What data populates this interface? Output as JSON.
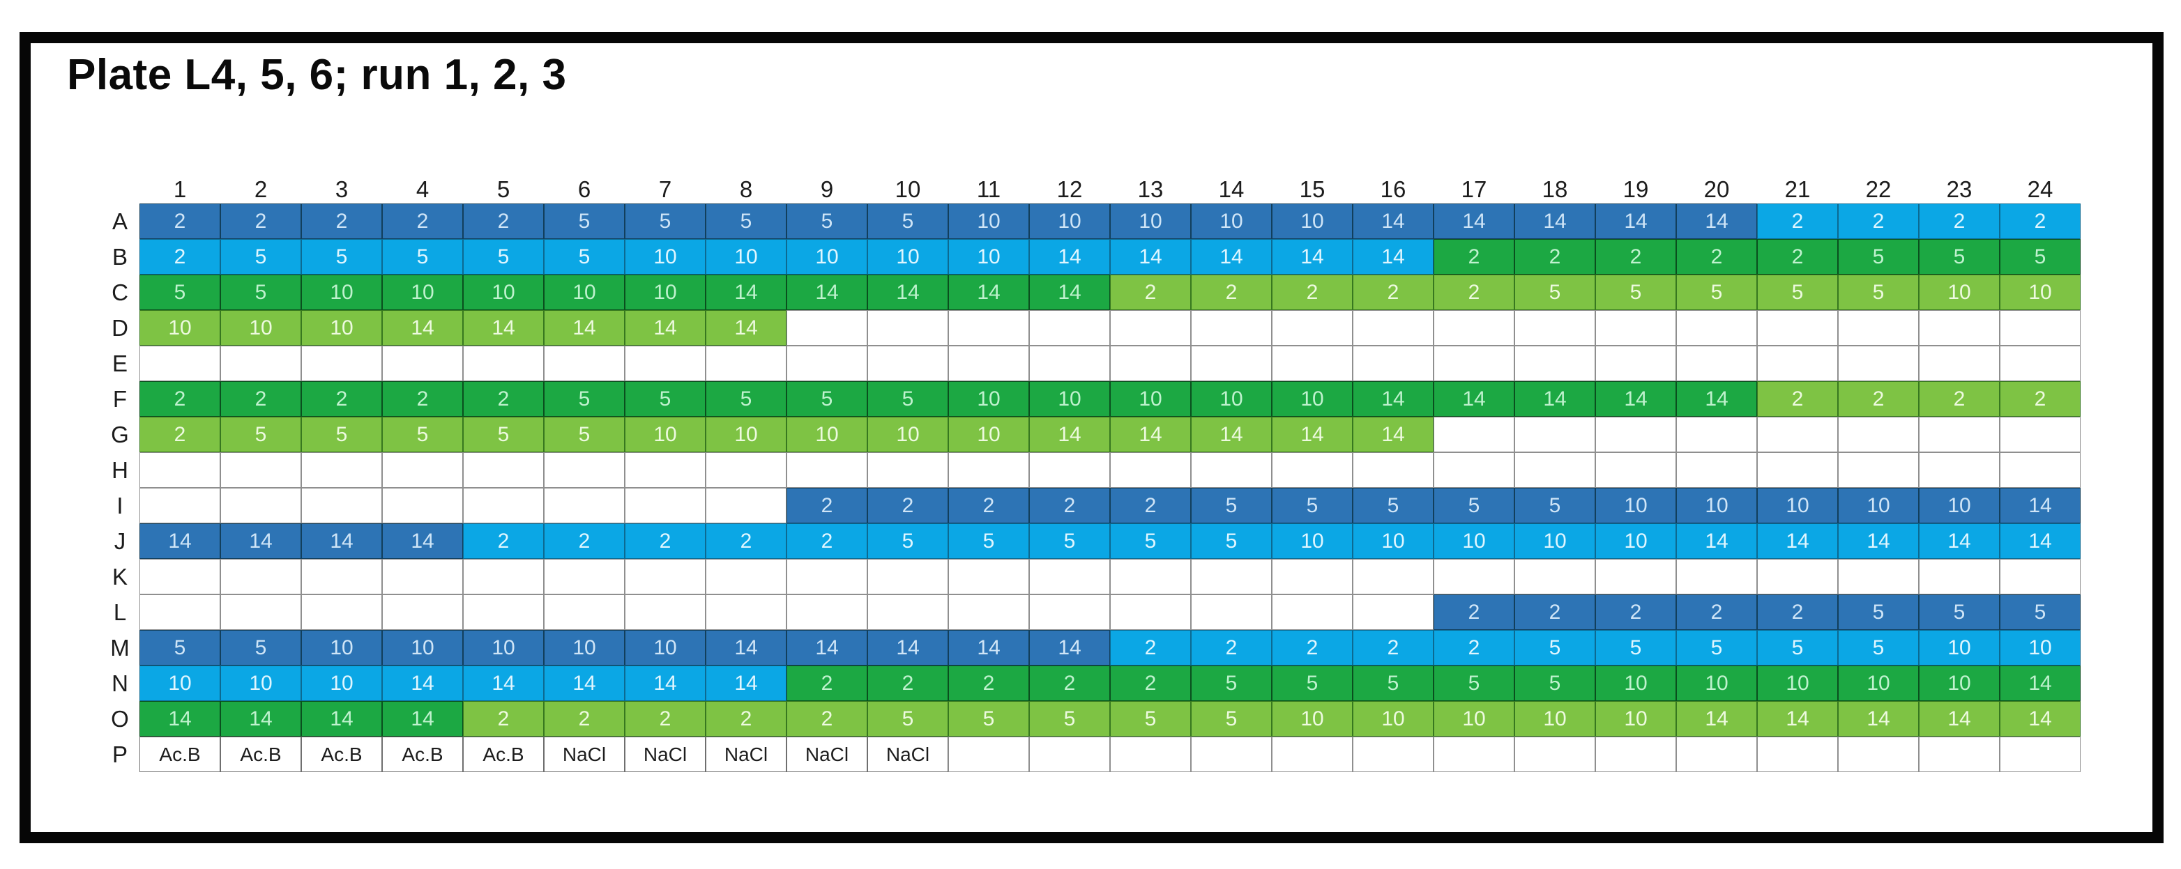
{
  "title": "Plate L4, 5, 6; run 1, 2, 3",
  "plate": {
    "column_headers": [
      "1",
      "2",
      "3",
      "4",
      "5",
      "6",
      "7",
      "8",
      "9",
      "10",
      "11",
      "12",
      "13",
      "14",
      "15",
      "16",
      "17",
      "18",
      "19",
      "20",
      "21",
      "22",
      "23",
      "24"
    ],
    "cell_color_legend": {
      "db": {
        "name": "dark-blue",
        "hex": "#2D74B5"
      },
      "lb": {
        "name": "light-blue",
        "hex": "#0BA7E5"
      },
      "dg": {
        "name": "dark-green",
        "hex": "#1CA843"
      },
      "lg": {
        "name": "light-green",
        "hex": "#7EC344"
      },
      "wt": {
        "name": "white-text-cell",
        "hex": "#FFFFFF"
      }
    },
    "rows": [
      {
        "label": "A",
        "cells": [
          "db:2",
          "db:2",
          "db:2",
          "db:2",
          "db:2",
          "db:5",
          "db:5",
          "db:5",
          "db:5",
          "db:5",
          "db:10",
          "db:10",
          "db:10",
          "db:10",
          "db:10",
          "db:14",
          "db:14",
          "db:14",
          "db:14",
          "db:14",
          "lb:2",
          "lb:2",
          "lb:2",
          "lb:2"
        ]
      },
      {
        "label": "B",
        "cells": [
          "lb:2",
          "lb:5",
          "lb:5",
          "lb:5",
          "lb:5",
          "lb:5",
          "lb:10",
          "lb:10",
          "lb:10",
          "lb:10",
          "lb:10",
          "lb:14",
          "lb:14",
          "lb:14",
          "lb:14",
          "lb:14",
          "dg:2",
          "dg:2",
          "dg:2",
          "dg:2",
          "dg:2",
          "dg:5",
          "dg:5",
          "dg:5"
        ]
      },
      {
        "label": "C",
        "cells": [
          "dg:5",
          "dg:5",
          "dg:10",
          "dg:10",
          "dg:10",
          "dg:10",
          "dg:10",
          "dg:14",
          "dg:14",
          "dg:14",
          "dg:14",
          "dg:14",
          "lg:2",
          "lg:2",
          "lg:2",
          "lg:2",
          "lg:2",
          "lg:5",
          "lg:5",
          "lg:5",
          "lg:5",
          "lg:5",
          "lg:10",
          "lg:10"
        ]
      },
      {
        "label": "D",
        "cells": [
          "lg:10",
          "lg:10",
          "lg:10",
          "lg:14",
          "lg:14",
          "lg:14",
          "lg:14",
          "lg:14",
          "",
          "",
          "",
          "",
          "",
          "",
          "",
          "",
          "",
          "",
          "",
          "",
          "",
          "",
          "",
          ""
        ]
      },
      {
        "label": "E",
        "cells": [
          "",
          "",
          "",
          "",
          "",
          "",
          "",
          "",
          "",
          "",
          "",
          "",
          "",
          "",
          "",
          "",
          "",
          "",
          "",
          "",
          "",
          "",
          "",
          ""
        ]
      },
      {
        "label": "F",
        "cells": [
          "dg:2",
          "dg:2",
          "dg:2",
          "dg:2",
          "dg:2",
          "dg:5",
          "dg:5",
          "dg:5",
          "dg:5",
          "dg:5",
          "dg:10",
          "dg:10",
          "dg:10",
          "dg:10",
          "dg:10",
          "dg:14",
          "dg:14",
          "dg:14",
          "dg:14",
          "dg:14",
          "lg:2",
          "lg:2",
          "lg:2",
          "lg:2"
        ]
      },
      {
        "label": "G",
        "cells": [
          "lg:2",
          "lg:5",
          "lg:5",
          "lg:5",
          "lg:5",
          "lg:5",
          "lg:10",
          "lg:10",
          "lg:10",
          "lg:10",
          "lg:10",
          "lg:14",
          "lg:14",
          "lg:14",
          "lg:14",
          "lg:14",
          "",
          "",
          "",
          "",
          "",
          "",
          "",
          ""
        ]
      },
      {
        "label": "H",
        "cells": [
          "",
          "",
          "",
          "",
          "",
          "",
          "",
          "",
          "",
          "",
          "",
          "",
          "",
          "",
          "",
          "",
          "",
          "",
          "",
          "",
          "",
          "",
          "",
          ""
        ]
      },
      {
        "label": "I",
        "cells": [
          "",
          "",
          "",
          "",
          "",
          "",
          "",
          "",
          "db:2",
          "db:2",
          "db:2",
          "db:2",
          "db:2",
          "db:5",
          "db:5",
          "db:5",
          "db:5",
          "db:5",
          "db:10",
          "db:10",
          "db:10",
          "db:10",
          "db:10",
          "db:14"
        ]
      },
      {
        "label": "J",
        "cells": [
          "db:14",
          "db:14",
          "db:14",
          "db:14",
          "lb:2",
          "lb:2",
          "lb:2",
          "lb:2",
          "lb:2",
          "lb:5",
          "lb:5",
          "lb:5",
          "lb:5",
          "lb:5",
          "lb:10",
          "lb:10",
          "lb:10",
          "lb:10",
          "lb:10",
          "lb:14",
          "lb:14",
          "lb:14",
          "lb:14",
          "lb:14"
        ]
      },
      {
        "label": "K",
        "cells": [
          "",
          "",
          "",
          "",
          "",
          "",
          "",
          "",
          "",
          "",
          "",
          "",
          "",
          "",
          "",
          "",
          "",
          "",
          "",
          "",
          "",
          "",
          "",
          ""
        ]
      },
      {
        "label": "L",
        "cells": [
          "",
          "",
          "",
          "",
          "",
          "",
          "",
          "",
          "",
          "",
          "",
          "",
          "",
          "",
          "",
          "",
          "db:2",
          "db:2",
          "db:2",
          "db:2",
          "db:2",
          "db:5",
          "db:5",
          "db:5"
        ]
      },
      {
        "label": "M",
        "cells": [
          "db:5",
          "db:5",
          "db:10",
          "db:10",
          "db:10",
          "db:10",
          "db:10",
          "db:14",
          "db:14",
          "db:14",
          "db:14",
          "db:14",
          "lb:2",
          "lb:2",
          "lb:2",
          "lb:2",
          "lb:2",
          "lb:5",
          "lb:5",
          "lb:5",
          "lb:5",
          "lb:5",
          "lb:10",
          "lb:10"
        ]
      },
      {
        "label": "N",
        "cells": [
          "lb:10",
          "lb:10",
          "lb:10",
          "lb:14",
          "lb:14",
          "lb:14",
          "lb:14",
          "lb:14",
          "dg:2",
          "dg:2",
          "dg:2",
          "dg:2",
          "dg:2",
          "dg:5",
          "dg:5",
          "dg:5",
          "dg:5",
          "dg:5",
          "dg:10",
          "dg:10",
          "dg:10",
          "dg:10",
          "dg:10",
          "dg:14"
        ]
      },
      {
        "label": "O",
        "cells": [
          "dg:14",
          "dg:14",
          "dg:14",
          "dg:14",
          "lg:2",
          "lg:2",
          "lg:2",
          "lg:2",
          "lg:2",
          "lg:5",
          "lg:5",
          "lg:5",
          "lg:5",
          "lg:5",
          "lg:10",
          "lg:10",
          "lg:10",
          "lg:10",
          "lg:10",
          "lg:14",
          "lg:14",
          "lg:14",
          "lg:14",
          "lg:14"
        ]
      },
      {
        "label": "P",
        "cells": [
          "wt:Ac.B",
          "wt:Ac.B",
          "wt:Ac.B",
          "wt:Ac.B",
          "wt:Ac.B",
          "wt:NaCl",
          "wt:NaCl",
          "wt:NaCl",
          "wt:NaCl",
          "wt:NaCl",
          "",
          "",
          "",
          "",
          "",
          "",
          "",
          "",
          "",
          "",
          "",
          "",
          "",
          ""
        ]
      }
    ]
  }
}
